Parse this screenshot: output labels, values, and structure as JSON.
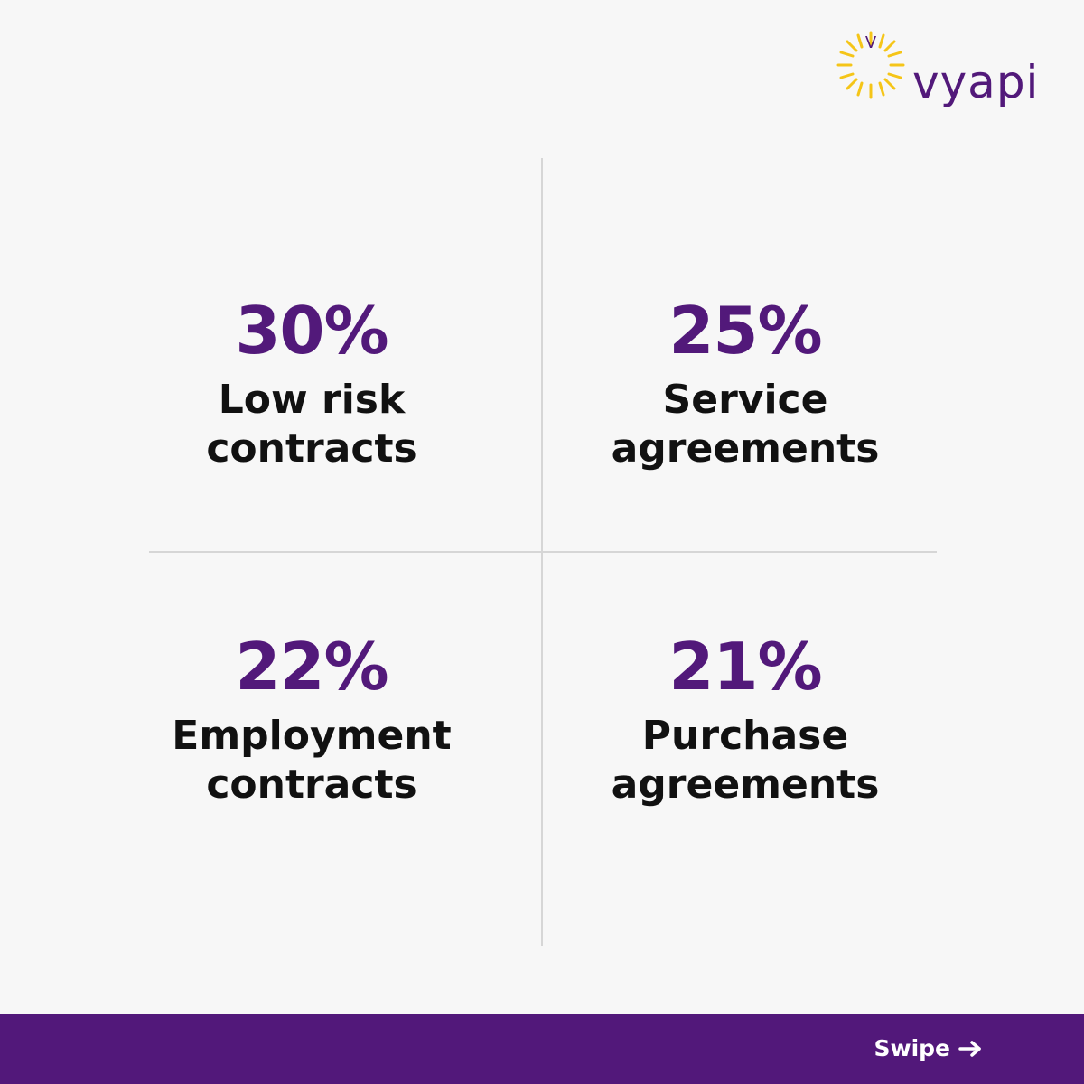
{
  "brand": {
    "logo_letter": "V",
    "name": "vyapi",
    "primary_color": "#52197a",
    "accent_color": "#f5c518"
  },
  "stats": [
    {
      "value": "30%",
      "label_line1": "Low risk",
      "label_line2": "contracts"
    },
    {
      "value": "25%",
      "label_line1": "Service",
      "label_line2": "agreements"
    },
    {
      "value": "22%",
      "label_line1": "Employment",
      "label_line2": "contracts"
    },
    {
      "value": "21%",
      "label_line1": "Purchase",
      "label_line2": "agreements"
    }
  ],
  "footer": {
    "swipe_label": "Swipe",
    "swipe_icon": "arrow-right-icon"
  }
}
